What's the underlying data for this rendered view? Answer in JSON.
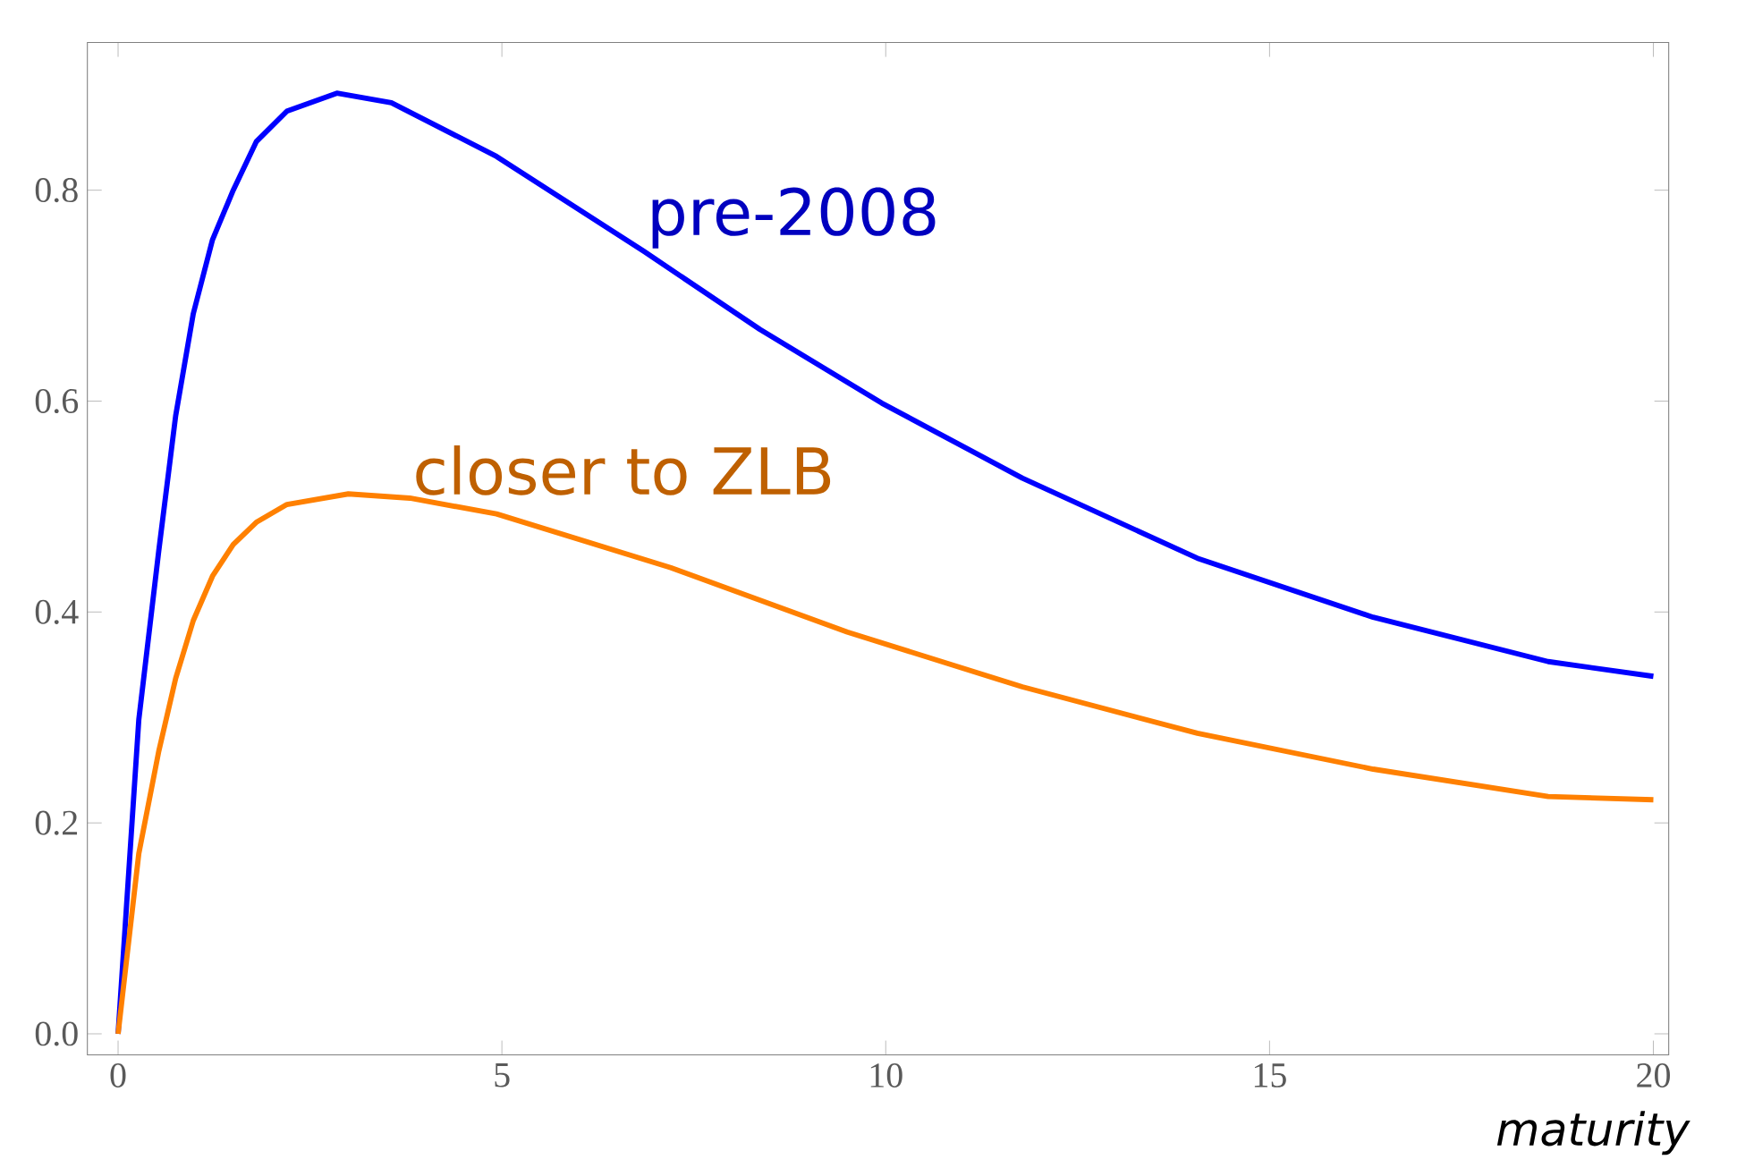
{
  "chart_data": {
    "type": "line",
    "xlabel": "maturity",
    "series": [
      {
        "name": "pre-2008",
        "color": "#0000ff",
        "x": [
          0,
          0.27,
          0.53,
          0.75,
          0.98,
          1.23,
          1.5,
          1.8,
          2.2,
          2.85,
          3.56,
          4.93,
          6.85,
          8.36,
          9.95,
          11.78,
          14.06,
          16.35,
          18.63,
          20
        ],
        "values": [
          0,
          0.298,
          0.458,
          0.586,
          0.683,
          0.753,
          0.8,
          0.846,
          0.875,
          0.892,
          0.883,
          0.832,
          0.742,
          0.668,
          0.598,
          0.527,
          0.451,
          0.395,
          0.353,
          0.339
        ]
      },
      {
        "name": "closer to ZLB",
        "color": "#ff8000",
        "x": [
          0,
          0.27,
          0.53,
          0.75,
          0.98,
          1.23,
          1.5,
          1.8,
          2.2,
          3.0,
          3.8,
          4.93,
          7.2,
          9.5,
          11.78,
          14.06,
          16.35,
          18.63,
          20
        ],
        "values": [
          0,
          0.171,
          0.268,
          0.337,
          0.392,
          0.434,
          0.464,
          0.485,
          0.502,
          0.512,
          0.508,
          0.493,
          0.442,
          0.381,
          0.329,
          0.285,
          0.251,
          0.225,
          0.222
        ]
      }
    ],
    "xlim": [
      -0.4,
      20.2
    ],
    "ylim": [
      -0.02,
      0.94
    ],
    "xticks": [
      0,
      5,
      10,
      15,
      20
    ],
    "yticks": [
      {
        "value": 0,
        "label": "0.0"
      },
      {
        "value": 0.2,
        "label": "0.2"
      },
      {
        "value": 0.4,
        "label": "0.4"
      },
      {
        "value": 0.6,
        "label": "0.6"
      },
      {
        "value": 0.8,
        "label": "0.8"
      }
    ],
    "grid": false,
    "legend": false,
    "marker": "none",
    "line_style": "solid"
  }
}
